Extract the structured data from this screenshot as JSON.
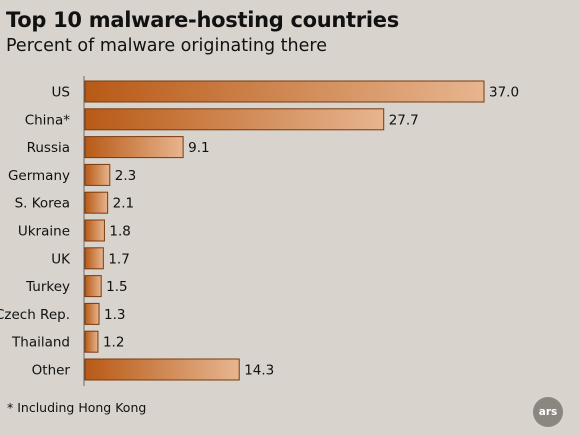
{
  "chart_data": {
    "type": "bar",
    "orientation": "horizontal",
    "title": "Top 10 malware-hosting countries",
    "subtitle": "Percent of malware originating there",
    "categories": [
      "US",
      "China*",
      "Russia",
      "Germany",
      "S. Korea",
      "Ukraine",
      "UK",
      "Turkey",
      "Czech Rep.",
      "Thailand",
      "Other"
    ],
    "values": [
      37.0,
      27.7,
      9.1,
      2.3,
      2.1,
      1.8,
      1.7,
      1.5,
      1.3,
      1.2,
      14.3
    ],
    "value_labels": [
      "37.0",
      "27.7",
      "9.1",
      "2.3",
      "2.1",
      "1.8",
      "1.7",
      "1.5",
      "1.3",
      "1.2",
      "14.3"
    ],
    "xlim": [
      0,
      37.0
    ],
    "grid": false,
    "bar_color_dark": "#b85a16",
    "bar_color_light": "#e7b58f",
    "bar_border": "#7a3a0c",
    "footnote": "* Including Hong Kong"
  },
  "branding": {
    "logo_text": "ars"
  }
}
